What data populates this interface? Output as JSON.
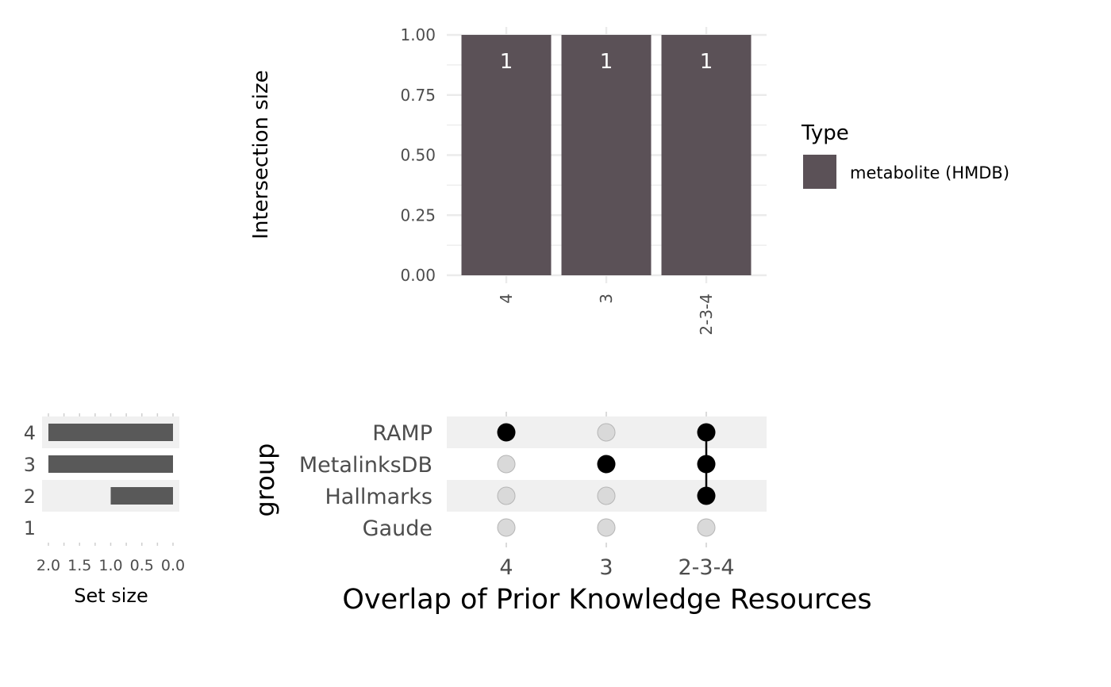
{
  "chart_data": [
    {
      "type": "bar",
      "panel": "intersections",
      "categories": [
        "4",
        "3",
        "2-3-4"
      ],
      "series": [
        {
          "name": "metabolite (HMDB)",
          "values": [
            1,
            1,
            1
          ]
        }
      ],
      "data_labels": [
        "1",
        "1",
        "1"
      ],
      "ylabel": "Intersection size",
      "ylim": [
        0,
        1
      ],
      "yticks": [
        "0.00",
        "0.25",
        "0.50",
        "0.75",
        "1.00"
      ],
      "grid": true,
      "legend": {
        "title": "Type",
        "placement": "right"
      }
    },
    {
      "type": "bar",
      "orientation": "horizontal",
      "panel": "set-size",
      "categories": [
        "4",
        "3",
        "2",
        "1"
      ],
      "values": [
        2,
        2,
        1,
        0
      ],
      "xlabel": "Set size",
      "xlim": [
        2,
        0
      ],
      "xticks": [
        "2.0",
        "1.5",
        "1.0",
        "0.5",
        "0.0"
      ],
      "grid": true
    },
    {
      "type": "matrix",
      "panel": "membership",
      "rows": [
        "RAMP",
        "MetalinksDB",
        "Hallmarks",
        "Gaude"
      ],
      "columns": [
        "4",
        "3",
        "2-3-4"
      ],
      "membership": [
        [
          true,
          false,
          true
        ],
        [
          false,
          true,
          true
        ],
        [
          false,
          false,
          true
        ],
        [
          false,
          false,
          false
        ]
      ],
      "ylabel": "group",
      "xlabel": "Overlap of Prior Knowledge Resources"
    }
  ],
  "colors": {
    "bar_fill": "#5b5157",
    "set_bar_fill": "#595959",
    "dot_active": "#000000",
    "dot_inactive": "#d9d9d9",
    "stripe": "#f0f0f0",
    "grid": "#ebebeb"
  }
}
